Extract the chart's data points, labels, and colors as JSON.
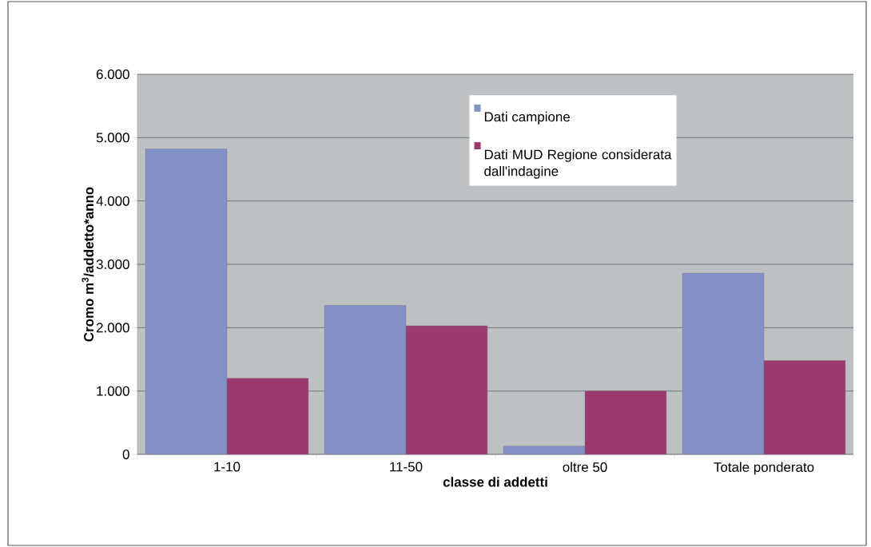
{
  "chart_data": {
    "type": "bar",
    "xlabel": "classe di addetti",
    "ylabel": "Cromo m$^{3}$/addetto*anno",
    "categories": [
      "1-10",
      "11-50",
      "oltre 50",
      "Totale ponderato"
    ],
    "series": [
      {
        "name": "Dati campione",
        "color": "#8490c8",
        "values": [
          4820,
          2350,
          130,
          2860
        ]
      },
      {
        "name": "Dati MUD Regione considerata dall'indagine",
        "color": "#9b3a6f",
        "values": [
          1200,
          2030,
          1000,
          1480
        ]
      }
    ],
    "ylim": [
      0,
      6000
    ],
    "yticks": [
      {
        "value": 0,
        "label": "0"
      },
      {
        "value": 1000,
        "label": "1.000"
      },
      {
        "value": 2000,
        "label": "2.000"
      },
      {
        "value": 3000,
        "label": "3.000"
      },
      {
        "value": 4000,
        "label": "4.000"
      },
      {
        "value": 5000,
        "label": "5.000"
      },
      {
        "value": 6000,
        "label": "6.000"
      }
    ],
    "grid": "y",
    "legend": "top"
  }
}
